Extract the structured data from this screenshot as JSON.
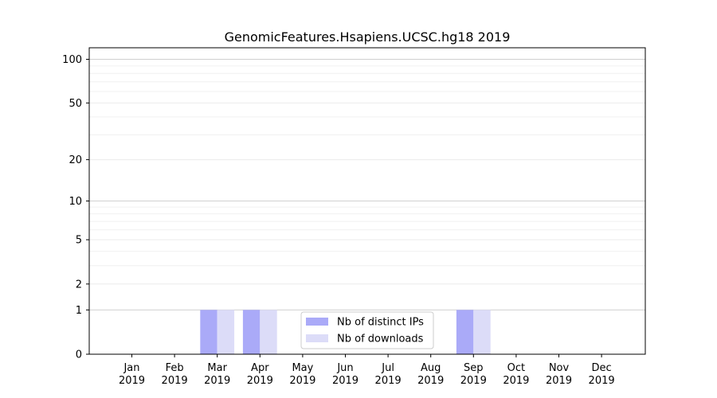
{
  "chart_data": {
    "type": "bar",
    "title": "GenomicFeatures.Hsapiens.UCSC.hg18 2019",
    "xlabel": "",
    "ylabel": "",
    "categories": [
      "Jan",
      "Feb",
      "Mar",
      "Apr",
      "May",
      "Jun",
      "Jul",
      "Aug",
      "Sep",
      "Oct",
      "Nov",
      "Dec"
    ],
    "category_sublabels": [
      "2019",
      "2019",
      "2019",
      "2019",
      "2019",
      "2019",
      "2019",
      "2019",
      "2019",
      "2019",
      "2019",
      "2019"
    ],
    "series": [
      {
        "name": "Nb of distinct IPs",
        "color": "#aaaaf8",
        "values": [
          0,
          0,
          1,
          1,
          0,
          0,
          0,
          0,
          1,
          0,
          0,
          0
        ]
      },
      {
        "name": "Nb of downloads",
        "color": "#dcdcf8",
        "values": [
          0,
          0,
          1,
          1,
          0,
          0,
          0,
          0,
          1,
          0,
          0,
          0
        ]
      }
    ],
    "y_scale": "log1p",
    "ylim": [
      0,
      120
    ],
    "y_ticks": [
      0,
      1,
      2,
      5,
      10,
      20,
      50,
      100
    ],
    "y_minor_ticks": [
      3,
      4,
      6,
      7,
      8,
      9,
      30,
      40,
      60,
      70,
      80,
      90
    ],
    "grid": true,
    "legend_position": "bottom-center"
  }
}
